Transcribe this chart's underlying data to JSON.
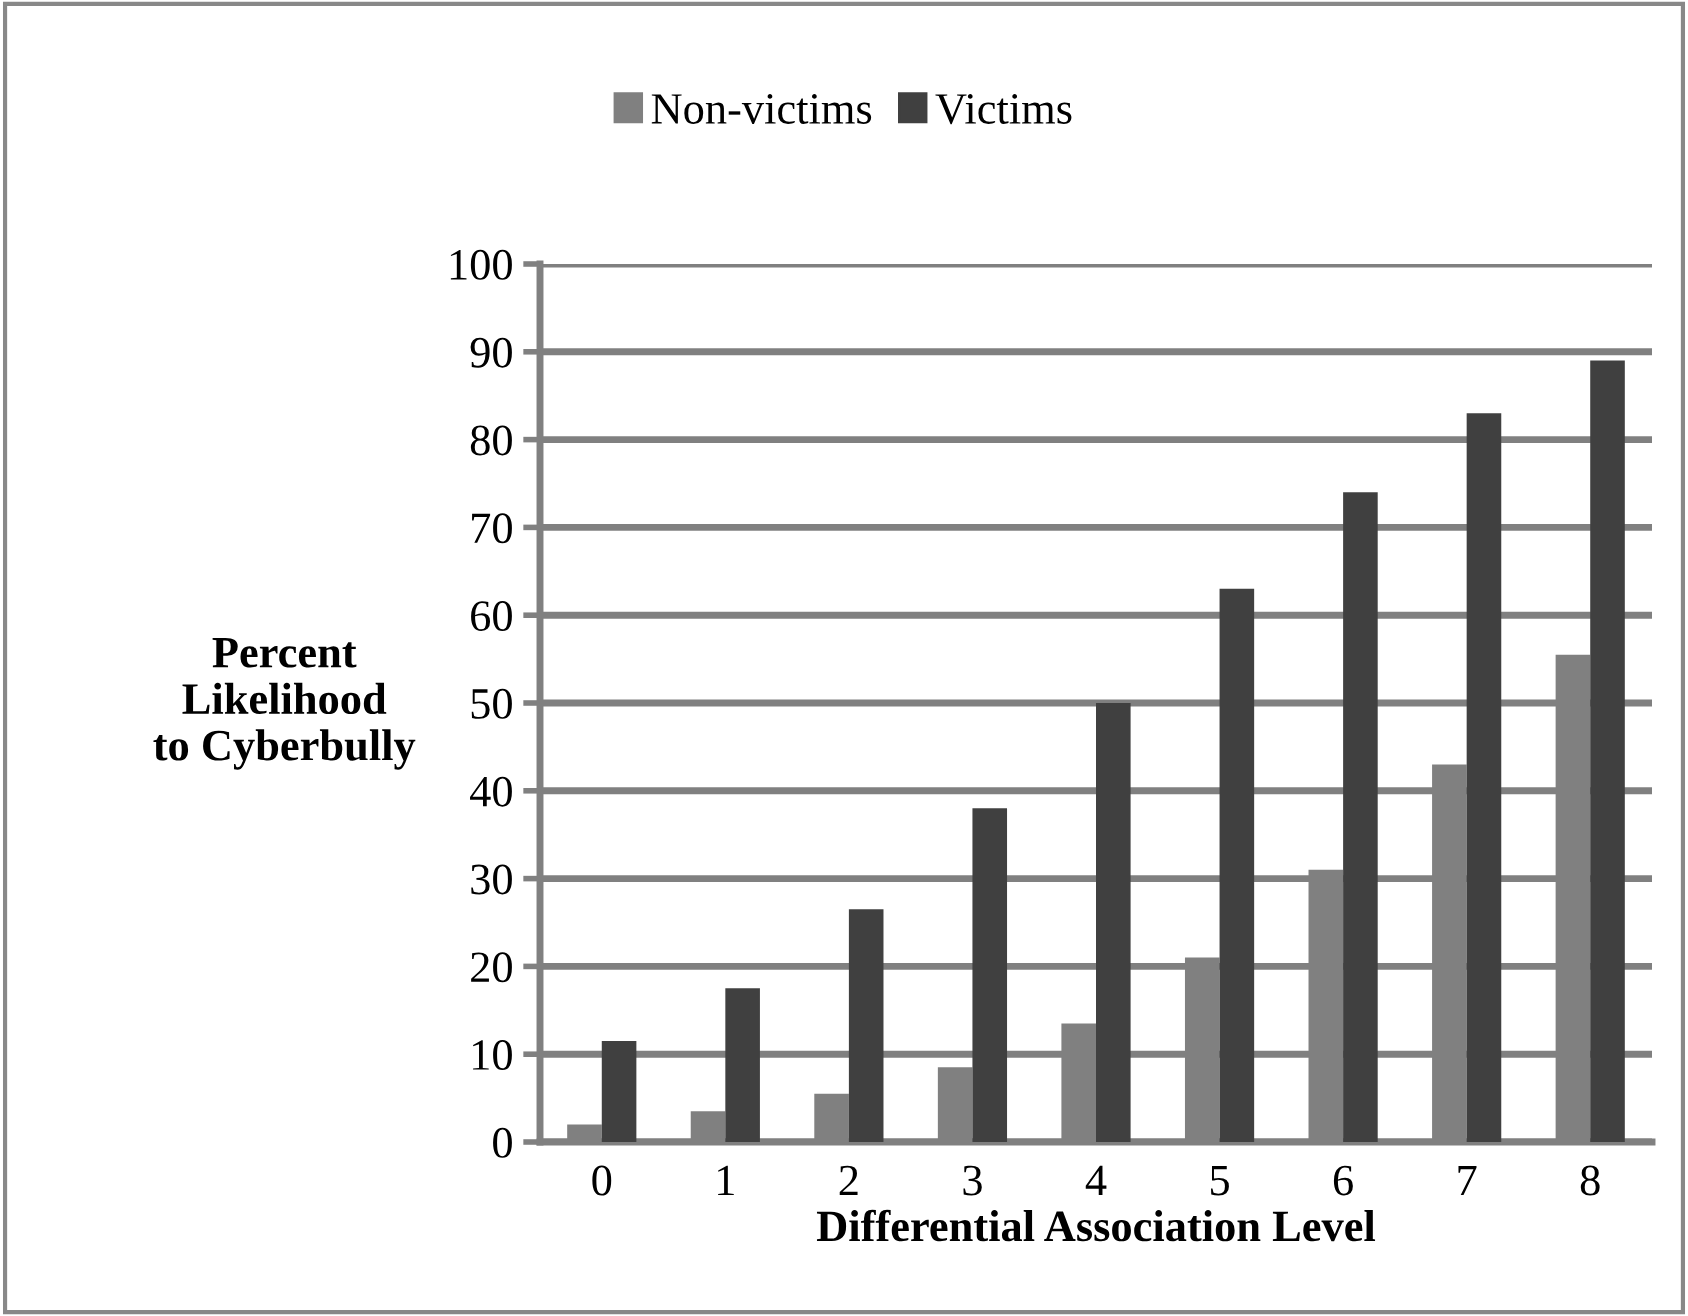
{
  "chart_data": {
    "type": "bar",
    "xlabel": "Differential Association Level",
    "ylabel": "Percent\nLikelihood\nto Cyberbully",
    "categories": [
      "0",
      "1",
      "2",
      "3",
      "4",
      "5",
      "6",
      "7",
      "8"
    ],
    "series": [
      {
        "name": "Non-victims",
        "color": "#808080",
        "values": [
          2,
          3.5,
          5.5,
          8.5,
          13.5,
          21,
          31,
          43,
          55.5
        ]
      },
      {
        "name": "Victims",
        "color": "#404040",
        "values": [
          11.5,
          17.5,
          26.5,
          38,
          50,
          63,
          74,
          83,
          89
        ]
      }
    ],
    "ylim": [
      0,
      100
    ],
    "yticks": [
      0,
      10,
      20,
      30,
      40,
      50,
      60,
      70,
      80,
      90,
      100
    ],
    "grid": "y",
    "legend": "top"
  }
}
